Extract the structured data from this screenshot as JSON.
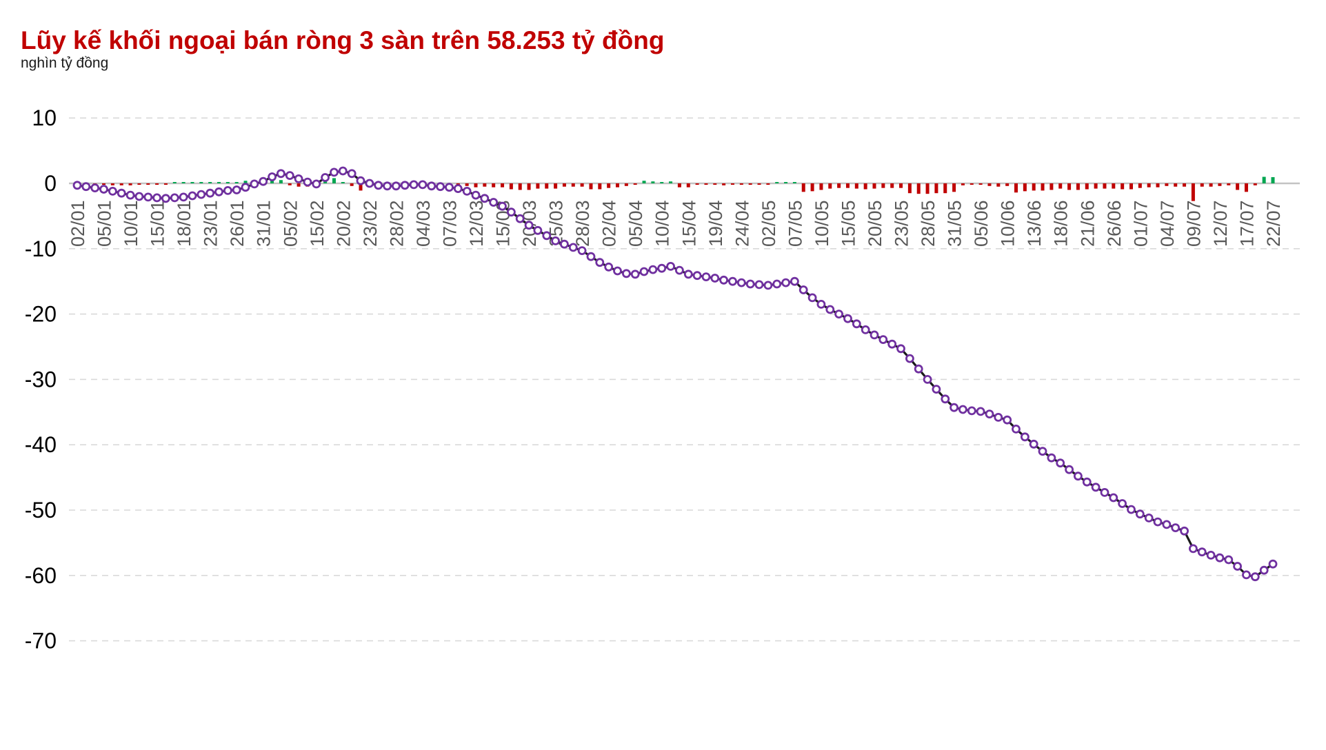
{
  "title": {
    "text": "Lũy kế khối ngoại bán ròng 3 sàn trên 58.253 tỷ đồng",
    "color": "#c00000"
  },
  "unit_label": "nghìn tỷ đồng",
  "chart_data": {
    "type": "line",
    "title": "Lũy kế khối ngoại bán ròng 3 sàn trên 58.253 tỷ đồng",
    "subtitle": "nghìn tỷ đồng",
    "ylabel": "nghìn tỷ đồng",
    "xlabel": "",
    "ylim": [
      -70,
      10
    ],
    "y_ticks": [
      10,
      0,
      -10,
      -20,
      -30,
      -40,
      -50,
      -60,
      -70
    ],
    "grid": "horizontal-dashed",
    "legend": "none",
    "x_tick_labels": [
      "02/01",
      "05/01",
      "10/01",
      "15/01",
      "18/01",
      "23/01",
      "26/01",
      "31/01",
      "05/02",
      "15/02",
      "20/02",
      "23/02",
      "28/02",
      "04/03",
      "07/03",
      "12/03",
      "15/03",
      "20/03",
      "25/03",
      "28/03",
      "02/04",
      "05/04",
      "10/04",
      "15/04",
      "19/04",
      "24/04",
      "02/05",
      "07/05",
      "10/05",
      "15/05",
      "20/05",
      "23/05",
      "28/05",
      "31/05",
      "05/06",
      "10/06",
      "13/06",
      "18/06",
      "21/06",
      "26/06",
      "01/07",
      "04/07",
      "09/07",
      "12/07",
      "17/07",
      "22/07"
    ],
    "points_per_tick": 3,
    "series": [
      {
        "name": "cumulative-net-foreign-value",
        "type": "line-with-markers",
        "values": [
          -0.3,
          -0.5,
          -0.7,
          -0.9,
          -1.2,
          -1.5,
          -1.8,
          -2.0,
          -2.1,
          -2.2,
          -2.3,
          -2.2,
          -2.1,
          -1.9,
          -1.7,
          -1.5,
          -1.3,
          -1.1,
          -1.0,
          -0.6,
          -0.1,
          0.3,
          1.0,
          1.5,
          1.2,
          0.7,
          0.2,
          -0.1,
          0.9,
          1.7,
          1.9,
          1.5,
          0.4,
          0.0,
          -0.3,
          -0.4,
          -0.4,
          -0.3,
          -0.2,
          -0.2,
          -0.4,
          -0.5,
          -0.6,
          -0.8,
          -1.2,
          -1.8,
          -2.3,
          -2.9,
          -3.5,
          -4.4,
          -5.4,
          -6.4,
          -7.2,
          -8.0,
          -8.8,
          -9.3,
          -9.8,
          -10.3,
          -11.2,
          -12.1,
          -12.8,
          -13.4,
          -13.8,
          -13.9,
          -13.5,
          -13.2,
          -13.0,
          -12.7,
          -13.3,
          -13.9,
          -14.1,
          -14.3,
          -14.5,
          -14.8,
          -15.0,
          -15.2,
          -15.4,
          -15.5,
          -15.6,
          -15.4,
          -15.2,
          -15.0,
          -16.3,
          -17.5,
          -18.5,
          -19.3,
          -20.0,
          -20.7,
          -21.5,
          -22.4,
          -23.2,
          -23.9,
          -24.6,
          -25.3,
          -26.8,
          -28.4,
          -30.0,
          -31.5,
          -33.0,
          -34.3,
          -34.6,
          -34.8,
          -34.9,
          -35.3,
          -35.8,
          -36.2,
          -37.6,
          -38.8,
          -39.9,
          -41.0,
          -42.0,
          -42.8,
          -43.8,
          -44.8,
          -45.7,
          -46.5,
          -47.3,
          -48.1,
          -49.0,
          -49.9,
          -50.6,
          -51.2,
          -51.8,
          -52.2,
          -52.7,
          -53.2,
          -55.9,
          -56.4,
          -56.9,
          -57.3,
          -57.6,
          -58.6,
          -59.9,
          -60.2,
          -59.2,
          -58.25
        ]
      },
      {
        "name": "daily-net-foreign-value",
        "type": "bar",
        "values": "diff-of-cumulative"
      }
    ],
    "final_value": -58.253,
    "colors": {
      "title": "#c00000",
      "line": "#1a1a1a",
      "marker_ring": "#7030a0",
      "marker_fill": "#ffffff",
      "bar_positive": "#00a651",
      "bar_negative": "#c00000",
      "gridline": "#d9d9d9",
      "zero_axis": "#c3c3c3",
      "x_label": "#595959",
      "y_label": "#000000"
    }
  }
}
